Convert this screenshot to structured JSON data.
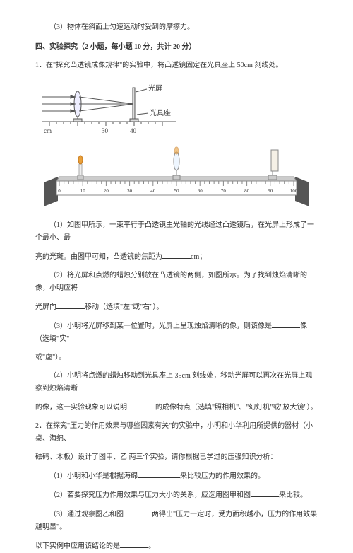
{
  "q3_line": "（3）物体在斜面上匀速运动时受到的摩擦力。",
  "section_heading": "四、实验探究（2 小题，每小题 10 分，共计 20 分）",
  "q1_intro": "1．在\"探究凸透镜成像规律\"的实验中，将凸透镜固定在光具座上 50cm 刻线处。",
  "fig1": {
    "label_screen": "光屏",
    "label_rail": "光具座",
    "unit": "cm",
    "ticks": [
      "30",
      "40"
    ],
    "colors": {
      "stroke": "#555555",
      "fill_light": "#dddddd"
    }
  },
  "fig2": {
    "tick_start": 0,
    "tick_end": 100,
    "tick_step": 10,
    "colors": {
      "rail": "#888888",
      "rail_face": "#cccccc",
      "base": "#555555",
      "flame": "#e9a03a",
      "candle": "#eeeeee",
      "screen": "#f5f0e6",
      "screen_border": "#888888"
    }
  },
  "q1_1a": "（1）如图甲所示，一束平行于凸透镜主光轴的光线经过凸透镜后，在光屏上形成了一个最小、最",
  "q1_1b_pre": "亮的光斑。由图甲可知，凸透镜的焦距为",
  "q1_1b_post": "cm；",
  "q1_2a": "（2）将光屏和点燃的蜡烛分别放在凸透镜的两侧，如图所示。为了找到烛焰清晰的像，小明应将",
  "q1_2b_pre": "光屏向",
  "q1_2b_post": "移动（选填\"左\"或\"右\"）。",
  "q1_3a_pre": "（3）小明将光屏移到某一位置时，光屏上呈现烛焰清晰的像，则该像是",
  "q1_3a_post": "像（选填\"实\"",
  "q1_3b": "或\"虚\"）。",
  "q1_4a": "（4）小明将点燃的蜡烛移动到光具座上 35cm 刻线处，移动光屏可以再次在光屏上观察到烛焰清晰",
  "q1_4b_pre": "的像，这一实验现象可以说明",
  "q1_4b_post": "的成像特点（选填\"照相机\"、\"幻灯机\"或\"放大镜\"）。",
  "q2_a": "2．在探究\"压力的作用效果与哪些因素有关\"的实验中，小明和小华利用所提供的器材（小桌、海绵、",
  "q2_b": "砝码、木板）设计了图甲、乙 两三个实验，请你根据已学过的压强知识分析：",
  "q2_1_pre": "（1）小明和小华是根据海绵",
  "q2_1_post": "来比较压力的作用效果的。",
  "q2_2_pre": "（2）若要探究压力作用效果与压力大小的关系，应选用图甲和图",
  "q2_2_post": "来比较。",
  "q2_3a_pre": "（3）通过观察图乙和图",
  "q2_3a_post": "两得出\"压力一定时，受力面积越小，压力的作用效果越明显\"。",
  "q2_3b_pre": "以下实例中应用该结论的是",
  "q2_3b_post": "。"
}
